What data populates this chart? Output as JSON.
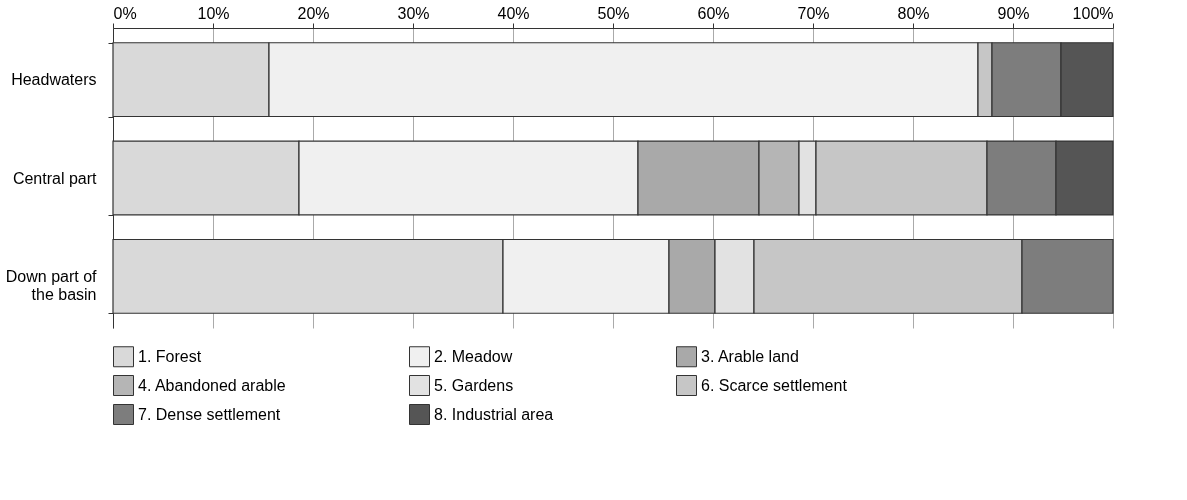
{
  "chart_data": {
    "type": "bar",
    "orientation": "horizontal",
    "stacked": true,
    "categories": [
      "Headwaters",
      "Central part",
      "Down part of the basin"
    ],
    "series": [
      {
        "name": "1. Forest",
        "color": "#d9d9d9",
        "values": [
          15.6,
          18.6,
          39.0
        ]
      },
      {
        "name": "2. Meadow",
        "color": "#f0f0f0",
        "values": [
          70.9,
          33.9,
          16.6
        ]
      },
      {
        "name": "3. Arable land",
        "color": "#a9a9a9",
        "values": [
          0,
          12.1,
          4.6
        ]
      },
      {
        "name": "4. Abandoned arable",
        "color": "#b5b5b5",
        "values": [
          0,
          4.0,
          0
        ]
      },
      {
        "name": "5. Gardens",
        "color": "#e2e2e2",
        "values": [
          0,
          1.7,
          3.9
        ]
      },
      {
        "name": "6. Scarce settlement",
        "color": "#c6c6c6",
        "values": [
          1.4,
          17.1,
          26.8
        ]
      },
      {
        "name": "7. Dense settlement",
        "color": "#7d7d7d",
        "values": [
          6.9,
          6.9,
          9.1
        ]
      },
      {
        "name": "8. Industrial area",
        "color": "#555555",
        "values": [
          5.2,
          5.7,
          0
        ]
      }
    ],
    "xlim": [
      0,
      100
    ],
    "xticks": [
      {
        "value": 0,
        "label": "0%"
      },
      {
        "value": 10,
        "label": "10%"
      },
      {
        "value": 20,
        "label": "20%"
      },
      {
        "value": 30,
        "label": "30%"
      },
      {
        "value": 40,
        "label": "40%"
      },
      {
        "value": 50,
        "label": "50%"
      },
      {
        "value": 60,
        "label": "60%"
      },
      {
        "value": 70,
        "label": "70%"
      },
      {
        "value": 80,
        "label": "80%"
      },
      {
        "value": 90,
        "label": "90%"
      },
      {
        "value": 100,
        "label": "100%"
      }
    ],
    "grid": "x",
    "legend": "bottom"
  }
}
